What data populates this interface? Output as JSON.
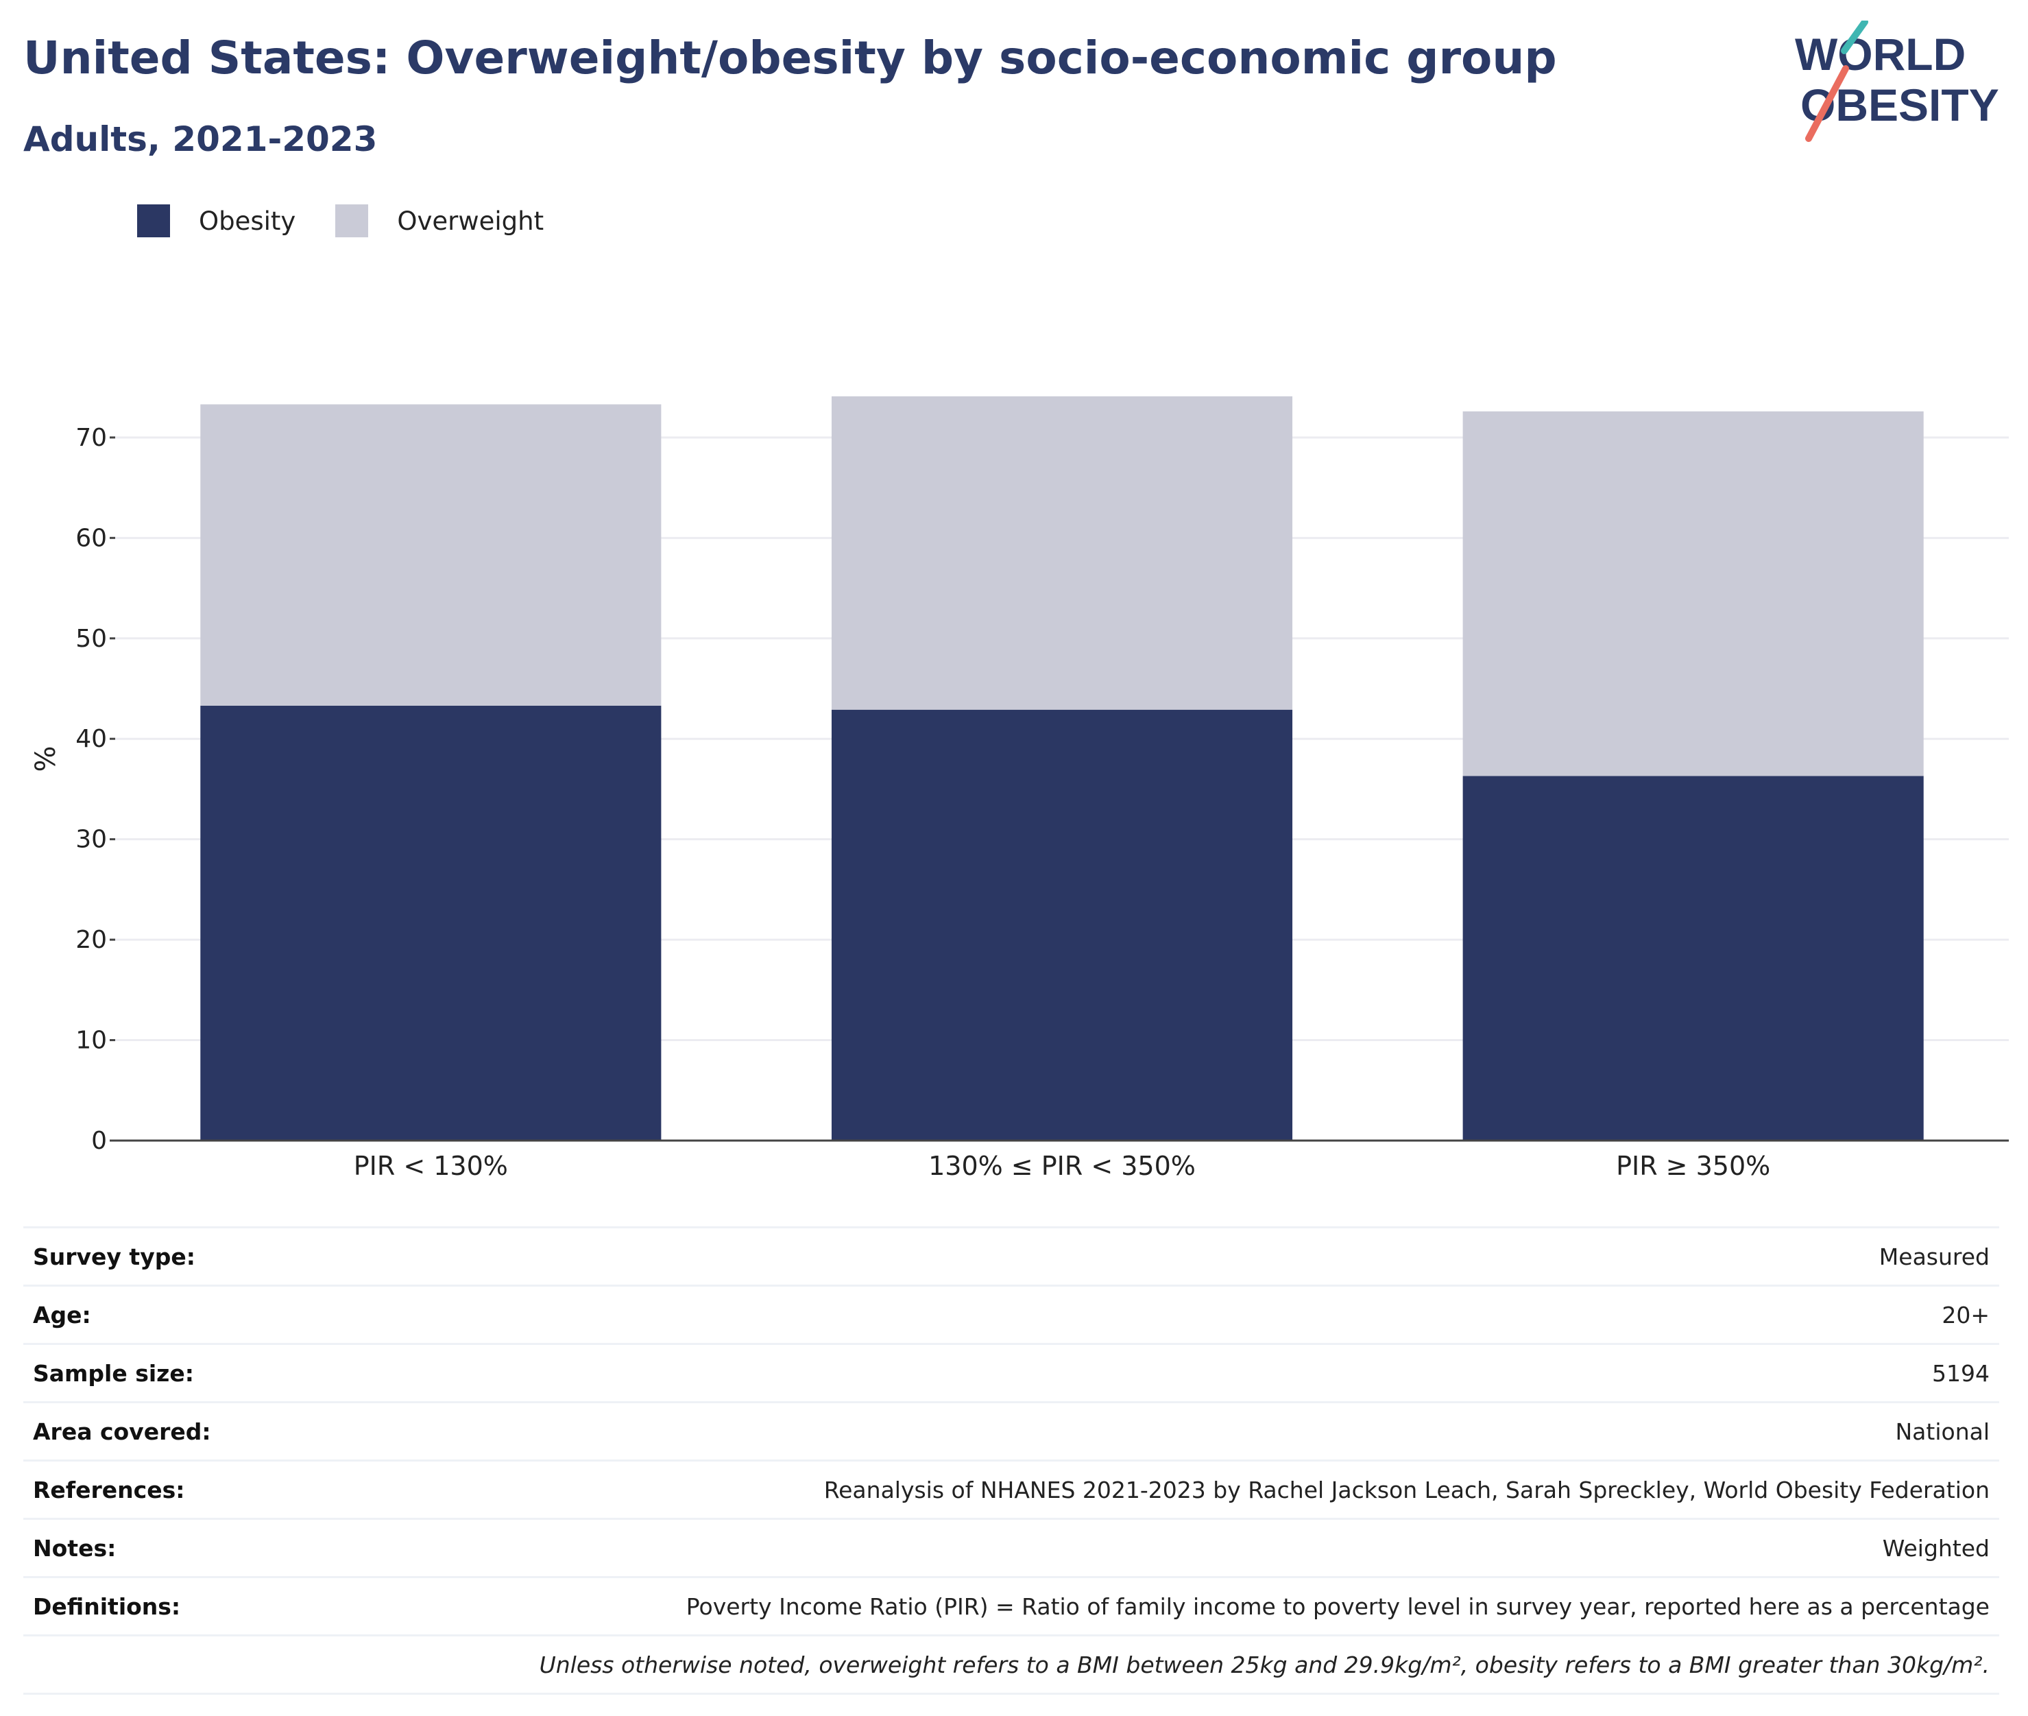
{
  "header": {
    "title": "United States: Overweight/obesity by socio-economic group",
    "subtitle": "Adults, 2021-2023"
  },
  "logo": {
    "line1": "WORLD",
    "line2": "OBESITY",
    "accent_teal": "#3fb6b2",
    "accent_coral": "#ea6d5f"
  },
  "colors": {
    "obesity": "#2b3763",
    "overweight": "#cacbd7",
    "heading": "#2b3a67",
    "grid": "#ececf1"
  },
  "chart_data": {
    "type": "bar",
    "stacked": true,
    "categories": [
      "PIR < 130%",
      "130% ≤ PIR < 350%",
      "PIR ≥ 350%"
    ],
    "series": [
      {
        "name": "Obesity",
        "values": [
          43.3,
          42.9,
          36.3
        ]
      },
      {
        "name": "Overweight",
        "values": [
          30.0,
          31.2,
          36.3
        ]
      }
    ],
    "ylabel": "%",
    "yticks": [
      0,
      10,
      20,
      30,
      40,
      50,
      60,
      70
    ],
    "ylim": [
      0,
      76
    ],
    "grid": true,
    "legend": "top-left"
  },
  "metadata": [
    {
      "label": "Survey type:",
      "value": "Measured"
    },
    {
      "label": "Age:",
      "value": "20+"
    },
    {
      "label": "Sample size:",
      "value": "5194"
    },
    {
      "label": "Area covered:",
      "value": "National"
    },
    {
      "label": "References:",
      "value": "Reanalysis of NHANES 2021-2023 by Rachel Jackson Leach, Sarah Spreckley, World Obesity Federation"
    },
    {
      "label": "Notes:",
      "value": "Weighted"
    },
    {
      "label": "Definitions:",
      "value": "Poverty Income Ratio (PIR) = Ratio of family income to poverty level in survey year, reported here as a percentage"
    }
  ],
  "footnote": "Unless otherwise noted, overweight refers to a BMI between 25kg and 29.9kg/m², obesity refers to a BMI greater than 30kg/m²."
}
